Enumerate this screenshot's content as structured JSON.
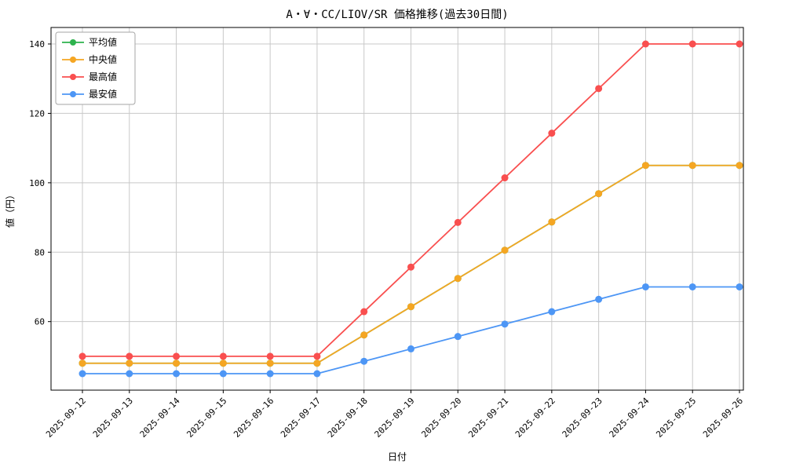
{
  "chart_data": {
    "type": "line",
    "title": "A・∀・CC/LIOV/SR 価格推移(過去30日間)",
    "xlabel": "日付",
    "ylabel": "値（円）",
    "categories": [
      "2025-09-12",
      "2025-09-13",
      "2025-09-14",
      "2025-09-15",
      "2025-09-16",
      "2025-09-17",
      "2025-09-18",
      "2025-09-19",
      "2025-09-20",
      "2025-09-21",
      "2025-09-22",
      "2025-09-23",
      "2025-09-24",
      "2025-09-25",
      "2025-09-26"
    ],
    "ylim": [
      40.25,
      144.75
    ],
    "yticks": [
      60,
      80,
      100,
      120,
      140
    ],
    "grid": true,
    "legend_position": "upper left",
    "marker": "circle",
    "series": [
      {
        "key": "average",
        "name": "平均値",
        "color": "#2db34d",
        "values": [
          48,
          48,
          48,
          48,
          48,
          48,
          56.14,
          64.29,
          72.43,
          80.57,
          88.71,
          96.86,
          105,
          105,
          105
        ]
      },
      {
        "key": "median",
        "name": "中央値",
        "color": "#f5a623",
        "values": [
          48,
          48,
          48,
          48,
          48,
          48,
          56.14,
          64.29,
          72.43,
          80.57,
          88.71,
          96.86,
          105,
          105,
          105
        ]
      },
      {
        "key": "max",
        "name": "最高値",
        "color": "#f94f4f",
        "values": [
          50,
          50,
          50,
          50,
          50,
          50,
          62.86,
          75.71,
          88.57,
          101.43,
          114.29,
          127.14,
          140,
          140,
          140
        ]
      },
      {
        "key": "min",
        "name": "最安値",
        "color": "#4d96f5",
        "values": [
          45,
          45,
          45,
          45,
          45,
          45,
          48.57,
          52.14,
          55.71,
          59.29,
          62.86,
          66.43,
          70,
          70,
          70
        ]
      }
    ],
    "colors": {
      "grid": "#c8c8c8",
      "spine": "#000000",
      "background": "#ffffff",
      "legend_border": "#a6a6a6"
    }
  }
}
